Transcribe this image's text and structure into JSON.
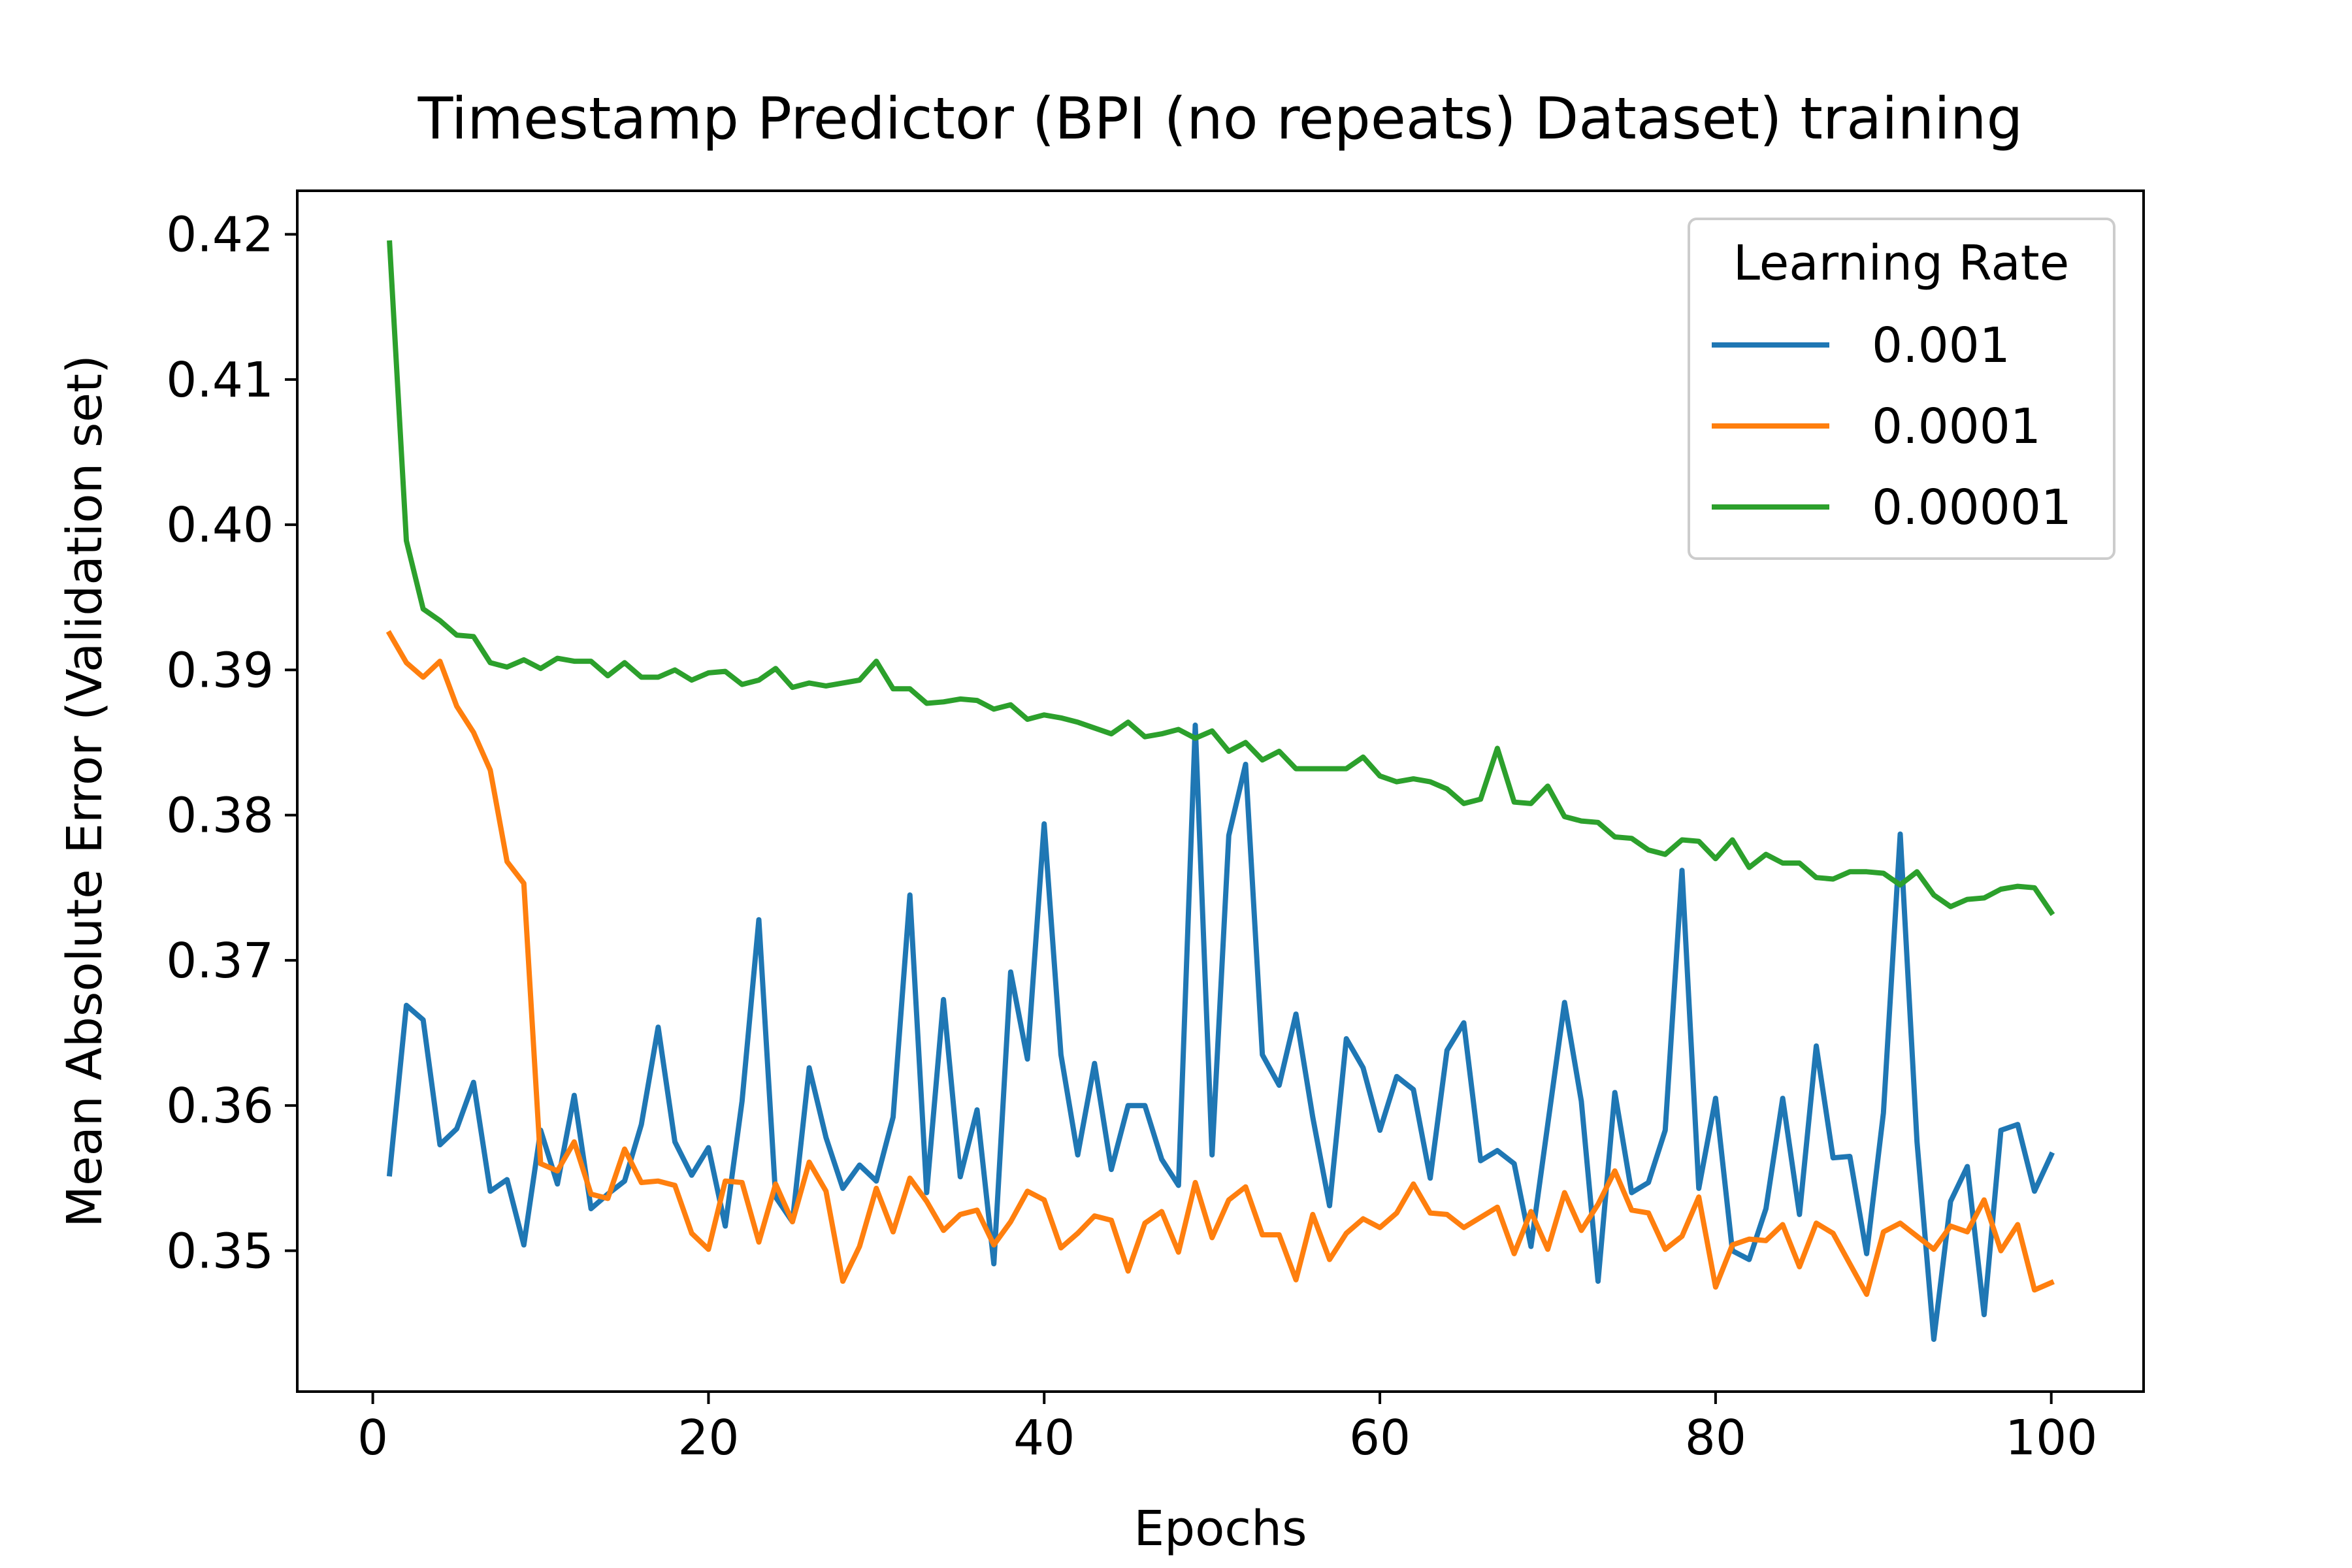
{
  "chart_data": {
    "type": "line",
    "title": "Timestamp Predictor (BPI (no repeats) Dataset) training",
    "xlabel": "Epochs",
    "ylabel": "Mean Absolute Error (Validation set)",
    "xlim": [
      -4.5,
      105.5
    ],
    "ylim": [
      0.3403,
      0.423
    ],
    "xticks": [
      0,
      20,
      40,
      60,
      80,
      100
    ],
    "yticks": [
      0.35,
      0.36,
      0.37,
      0.38,
      0.39,
      0.4,
      0.41,
      0.42
    ],
    "xtick_labels": [
      "0",
      "20",
      "40",
      "60",
      "80",
      "100"
    ],
    "ytick_labels": [
      "0.35",
      "0.36",
      "0.37",
      "0.38",
      "0.39",
      "0.40",
      "0.41",
      "0.42"
    ],
    "grid": false,
    "legend": {
      "title": "Learning Rate",
      "position": "top-right"
    },
    "x": [
      1,
      2,
      3,
      4,
      5,
      6,
      7,
      8,
      9,
      10,
      11,
      12,
      13,
      14,
      15,
      16,
      17,
      18,
      19,
      20,
      21,
      22,
      23,
      24,
      25,
      26,
      27,
      28,
      29,
      30,
      31,
      32,
      33,
      34,
      35,
      36,
      37,
      38,
      39,
      40,
      41,
      42,
      43,
      44,
      45,
      46,
      47,
      48,
      49,
      50,
      51,
      52,
      53,
      54,
      55,
      56,
      57,
      58,
      59,
      60,
      61,
      62,
      63,
      64,
      65,
      66,
      67,
      68,
      69,
      70,
      71,
      72,
      73,
      74,
      75,
      76,
      77,
      78,
      79,
      80,
      81,
      82,
      83,
      84,
      85,
      86,
      87,
      88,
      89,
      90,
      91,
      92,
      93,
      94,
      95,
      96,
      97,
      98,
      99,
      100
    ],
    "series": [
      {
        "name": "0.001",
        "color": "#1f77b4",
        "values": [
          0.3553,
          0.3669,
          0.3659,
          0.3573,
          0.3584,
          0.3616,
          0.3541,
          0.3549,
          0.3504,
          0.3583,
          0.3546,
          0.3607,
          0.3529,
          0.3539,
          0.3548,
          0.3587,
          0.3654,
          0.3575,
          0.3552,
          0.3571,
          0.3517,
          0.3603,
          0.3728,
          0.3537,
          0.352,
          0.3626,
          0.3578,
          0.3543,
          0.3559,
          0.3548,
          0.3592,
          0.3745,
          0.354,
          0.3673,
          0.3551,
          0.3597,
          0.3491,
          0.3692,
          0.3632,
          0.3794,
          0.3635,
          0.3566,
          0.3629,
          0.3556,
          0.36,
          0.36,
          0.3563,
          0.3545,
          0.3862,
          0.3566,
          0.3786,
          0.3835,
          0.3635,
          0.3614,
          0.3663,
          0.3592,
          0.3531,
          0.3646,
          0.3626,
          0.3583,
          0.362,
          0.3611,
          0.355,
          0.3638,
          0.3657,
          0.3562,
          0.3569,
          0.356,
          0.3503,
          0.3587,
          0.3671,
          0.3603,
          0.3479,
          0.3609,
          0.354,
          0.3547,
          0.3583,
          0.3762,
          0.3543,
          0.3605,
          0.35,
          0.3494,
          0.3529,
          0.3605,
          0.3525,
          0.3641,
          0.3564,
          0.3565,
          0.3498,
          0.3595,
          0.3787,
          0.3575,
          0.3439,
          0.3534,
          0.3558,
          0.3456,
          0.3583,
          0.3587,
          0.3541,
          0.3566
        ]
      },
      {
        "name": "0.0001",
        "color": "#ff7f0e",
        "values": [
          0.3925,
          0.3905,
          0.3895,
          0.3906,
          0.3875,
          0.3857,
          0.3831,
          0.3768,
          0.3753,
          0.356,
          0.3555,
          0.3575,
          0.3539,
          0.3536,
          0.357,
          0.3547,
          0.3548,
          0.3545,
          0.3512,
          0.3501,
          0.3548,
          0.3547,
          0.3506,
          0.3546,
          0.352,
          0.3561,
          0.3541,
          0.3479,
          0.3503,
          0.3543,
          0.3513,
          0.355,
          0.3534,
          0.3514,
          0.3525,
          0.3528,
          0.3504,
          0.352,
          0.3541,
          0.3535,
          0.3502,
          0.3512,
          0.3524,
          0.3521,
          0.3486,
          0.3519,
          0.3527,
          0.3499,
          0.3547,
          0.3509,
          0.3535,
          0.3544,
          0.3511,
          0.3511,
          0.348,
          0.3525,
          0.3494,
          0.3512,
          0.3522,
          0.3516,
          0.3526,
          0.3546,
          0.3526,
          0.3525,
          0.3516,
          0.3523,
          0.353,
          0.3498,
          0.3527,
          0.3501,
          0.354,
          0.3514,
          0.3532,
          0.3555,
          0.3528,
          0.3526,
          0.3501,
          0.351,
          0.3537,
          0.3475,
          0.3504,
          0.3508,
          0.3507,
          0.3518,
          0.3489,
          0.3519,
          0.3512,
          0.3491,
          0.347,
          0.3513,
          0.3519,
          0.351,
          0.3501,
          0.3517,
          0.3513,
          0.3535,
          0.35,
          0.3518,
          0.3473,
          0.3478
        ]
      },
      {
        "name": "0.00001",
        "color": "#2ca02c",
        "values": [
          0.4194,
          0.3989,
          0.3942,
          0.3934,
          0.3924,
          0.3923,
          0.3905,
          0.3902,
          0.3907,
          0.3901,
          0.3908,
          0.3906,
          0.3906,
          0.3896,
          0.3905,
          0.3895,
          0.3895,
          0.39,
          0.3893,
          0.3898,
          0.3899,
          0.389,
          0.3893,
          0.3901,
          0.3888,
          0.3891,
          0.3889,
          0.3891,
          0.3893,
          0.3906,
          0.3887,
          0.3887,
          0.3877,
          0.3878,
          0.388,
          0.3879,
          0.3873,
          0.3876,
          0.3866,
          0.3869,
          0.3867,
          0.3864,
          0.386,
          0.3856,
          0.3864,
          0.3854,
          0.3856,
          0.3859,
          0.3853,
          0.3858,
          0.3844,
          0.385,
          0.3838,
          0.3844,
          0.3832,
          0.3832,
          0.3832,
          0.3832,
          0.384,
          0.3827,
          0.3823,
          0.3825,
          0.3823,
          0.3818,
          0.3808,
          0.3811,
          0.3846,
          0.3809,
          0.3808,
          0.382,
          0.3799,
          0.3796,
          0.3795,
          0.3785,
          0.3784,
          0.3776,
          0.3773,
          0.3783,
          0.3782,
          0.377,
          0.3783,
          0.3764,
          0.3773,
          0.3767,
          0.3767,
          0.3757,
          0.3756,
          0.3761,
          0.3761,
          0.376,
          0.3752,
          0.3761,
          0.3745,
          0.3737,
          0.3742,
          0.3743,
          0.3749,
          0.3751,
          0.375,
          0.3733
        ]
      }
    ]
  }
}
